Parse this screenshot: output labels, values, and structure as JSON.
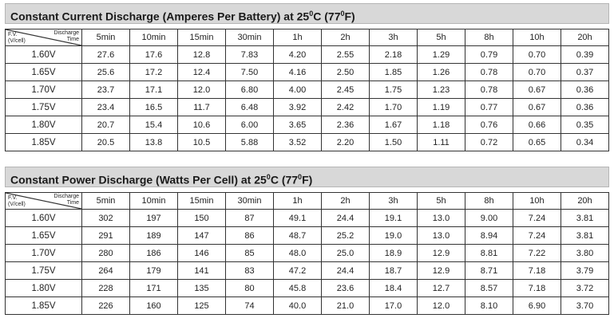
{
  "corner": {
    "fv_line1": "F.V.",
    "fv_line2": "(V/cell)",
    "dis_line1": "Discharge",
    "dis_line2": "Time"
  },
  "columns": [
    "5min",
    "10min",
    "15min",
    "30min",
    "1h",
    "2h",
    "3h",
    "5h",
    "8h",
    "10h",
    "20h"
  ],
  "current": {
    "title_pre": "Constant Current Discharge (Amperes Per Battery) at 25",
    "title_sup1": "0",
    "title_mid": "C (77",
    "title_sup2": "0",
    "title_post": "F)",
    "rows": [
      {
        "fv": "1.60V",
        "values": [
          "27.6",
          "17.6",
          "12.8",
          "7.83",
          "4.20",
          "2.55",
          "2.18",
          "1.29",
          "0.79",
          "0.70",
          "0.39"
        ]
      },
      {
        "fv": "1.65V",
        "values": [
          "25.6",
          "17.2",
          "12.4",
          "7.50",
          "4.16",
          "2.50",
          "1.85",
          "1.26",
          "0.78",
          "0.70",
          "0.37"
        ]
      },
      {
        "fv": "1.70V",
        "values": [
          "23.7",
          "17.1",
          "12.0",
          "6.80",
          "4.00",
          "2.45",
          "1.75",
          "1.23",
          "0.78",
          "0.67",
          "0.36"
        ]
      },
      {
        "fv": "1.75V",
        "values": [
          "23.4",
          "16.5",
          "11.7",
          "6.48",
          "3.92",
          "2.42",
          "1.70",
          "1.19",
          "0.77",
          "0.67",
          "0.36"
        ]
      },
      {
        "fv": "1.80V",
        "values": [
          "20.7",
          "15.4",
          "10.6",
          "6.00",
          "3.65",
          "2.36",
          "1.67",
          "1.18",
          "0.76",
          "0.66",
          "0.35"
        ]
      },
      {
        "fv": "1.85V",
        "values": [
          "20.5",
          "13.8",
          "10.5",
          "5.88",
          "3.52",
          "2.20",
          "1.50",
          "1.11",
          "0.72",
          "0.65",
          "0.34"
        ]
      }
    ]
  },
  "power": {
    "title_pre": "Constant Power Discharge (Watts Per Cell) at 25",
    "title_sup1": "0",
    "title_mid": "C (77",
    "title_sup2": "0",
    "title_post": "F)",
    "rows": [
      {
        "fv": "1.60V",
        "values": [
          "302",
          "197",
          "150",
          "87",
          "49.1",
          "24.4",
          "19.1",
          "13.0",
          "9.00",
          "7.24",
          "3.81"
        ]
      },
      {
        "fv": "1.65V",
        "values": [
          "291",
          "189",
          "147",
          "86",
          "48.7",
          "25.2",
          "19.0",
          "13.0",
          "8.94",
          "7.24",
          "3.81"
        ]
      },
      {
        "fv": "1.70V",
        "values": [
          "280",
          "186",
          "146",
          "85",
          "48.0",
          "25.0",
          "18.9",
          "12.9",
          "8.81",
          "7.22",
          "3.80"
        ]
      },
      {
        "fv": "1.75V",
        "values": [
          "264",
          "179",
          "141",
          "83",
          "47.2",
          "24.4",
          "18.7",
          "12.9",
          "8.71",
          "7.18",
          "3.79"
        ]
      },
      {
        "fv": "1.80V",
        "values": [
          "228",
          "171",
          "135",
          "80",
          "45.8",
          "23.6",
          "18.4",
          "12.7",
          "8.57",
          "7.18",
          "3.72"
        ]
      },
      {
        "fv": "1.85V",
        "values": [
          "226",
          "160",
          "125",
          "74",
          "40.0",
          "21.0",
          "17.0",
          "12.0",
          "8.10",
          "6.90",
          "3.70"
        ]
      }
    ]
  }
}
